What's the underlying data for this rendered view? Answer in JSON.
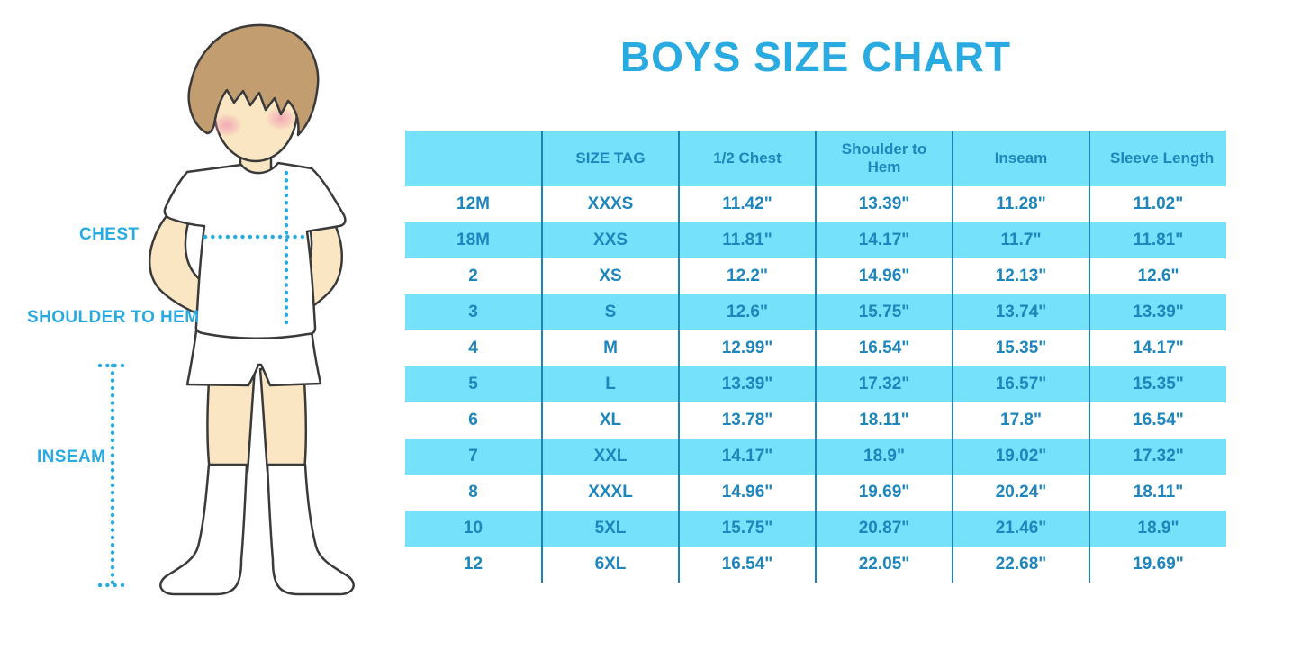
{
  "title": "BOYS SIZE CHART",
  "figure": {
    "labels": {
      "chest": "CHEST",
      "shoulder_to_hem": "SHOULDER TO HEM",
      "inseam": "INSEAM"
    }
  },
  "colors": {
    "accent_blue": "#29ABE2",
    "table_band_cyan": "#76E1FA",
    "table_text_blue": "#1E86BC",
    "grid_line_blue": "#1F83B5",
    "skin": "#FAE6C2",
    "hair_brown": "#C29D70",
    "blush_pink": "#F2A0B4",
    "outline": "#3A3A3A"
  },
  "chart_data": {
    "type": "table",
    "title": "BOYS SIZE CHART",
    "columns": [
      "",
      "SIZE TAG",
      "1/2 Chest",
      "Shoulder to Hem",
      "Inseam",
      "Sleeve Length"
    ],
    "rows": [
      [
        "12M",
        "XXXS",
        "11.42\"",
        "13.39\"",
        "11.28\"",
        "11.02\""
      ],
      [
        "18M",
        "XXS",
        "11.81\"",
        "14.17\"",
        "11.7\"",
        "11.81\""
      ],
      [
        "2",
        "XS",
        "12.2\"",
        "14.96\"",
        "12.13\"",
        "12.6\""
      ],
      [
        "3",
        "S",
        "12.6\"",
        "15.75\"",
        "13.74\"",
        "13.39\""
      ],
      [
        "4",
        "M",
        "12.99\"",
        "16.54\"",
        "15.35\"",
        "14.17\""
      ],
      [
        "5",
        "L",
        "13.39\"",
        "17.32\"",
        "16.57\"",
        "15.35\""
      ],
      [
        "6",
        "XL",
        "13.78\"",
        "18.11\"",
        "17.8\"",
        "16.54\""
      ],
      [
        "7",
        "XXL",
        "14.17\"",
        "18.9\"",
        "19.02\"",
        "17.32\""
      ],
      [
        "8",
        "XXXL",
        "14.96\"",
        "19.69\"",
        "20.24\"",
        "18.11\""
      ],
      [
        "10",
        "5XL",
        "15.75\"",
        "20.87\"",
        "21.46\"",
        "18.9\""
      ],
      [
        "12",
        "6XL",
        "16.54\"",
        "22.05\"",
        "22.68\"",
        "19.69\""
      ]
    ]
  }
}
